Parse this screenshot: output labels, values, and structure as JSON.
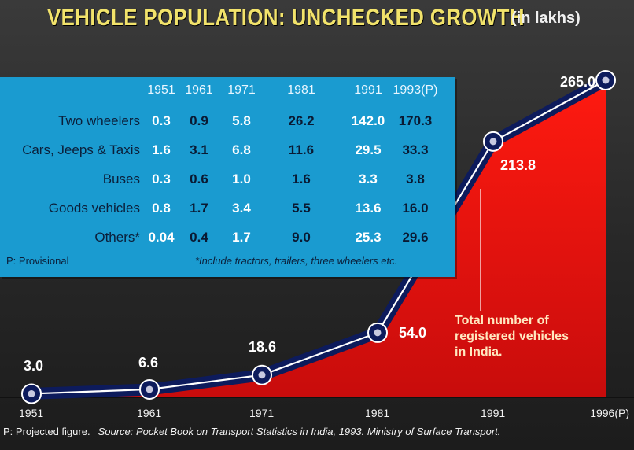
{
  "title": "VEHICLE POPULATION: UNCHECKED GROWTH",
  "unit": "(in lakhs)",
  "table": {
    "columns": [
      "1951",
      "1961",
      "1971",
      "1981",
      "1991",
      "1993(P)"
    ],
    "rows": [
      {
        "label": "Two wheelers",
        "values": [
          "0.3",
          "0.9",
          "5.8",
          "26.2",
          "142.0",
          "170.3"
        ]
      },
      {
        "label": "Cars, Jeeps & Taxis",
        "values": [
          "1.6",
          "3.1",
          "6.8",
          "11.6",
          "29.5",
          "33.3"
        ]
      },
      {
        "label": "Buses",
        "values": [
          "0.3",
          "0.6",
          "1.0",
          "1.6",
          "3.3",
          "3.8"
        ]
      },
      {
        "label": "Goods vehicles",
        "values": [
          "0.8",
          "1.7",
          "3.4",
          "5.5",
          "13.6",
          "16.0"
        ]
      },
      {
        "label": "Others*",
        "values": [
          "0.04",
          "0.4",
          "1.7",
          "9.0",
          "25.3",
          "29.6"
        ]
      }
    ],
    "provisional_note": "P: Provisional",
    "others_note": "*Include tractors, trailers, three wheelers etc."
  },
  "annotation": [
    "Total number of",
    "registered vehicles",
    "in India."
  ],
  "footer": {
    "projected": "P: Projected figure.",
    "source": "Source: Pocket Book on Transport Statistics in India, 1993. Ministry of Surface Transport."
  },
  "colors": {
    "background": "#2b2b2b",
    "area_fill": "#e01010",
    "line_outer": "#0d1b5c",
    "line_inner": "#ffffff",
    "table_bg": "#1a9bd0",
    "title": "#f2e36b"
  },
  "chart_data": {
    "type": "area",
    "categories": [
      "1951",
      "1961",
      "1971",
      "1981",
      "1991",
      "1996(P)"
    ],
    "values": [
      3.0,
      6.6,
      18.6,
      54.0,
      213.8,
      265.0
    ],
    "data_labels": [
      "3.0",
      "6.6",
      "18.6",
      "54.0",
      "213.8",
      "265.0"
    ],
    "ylim": [
      0,
      265
    ],
    "grid": false,
    "title": "VEHICLE POPULATION: UNCHECKED GROWTH",
    "xlabel": "",
    "ylabel": ""
  }
}
